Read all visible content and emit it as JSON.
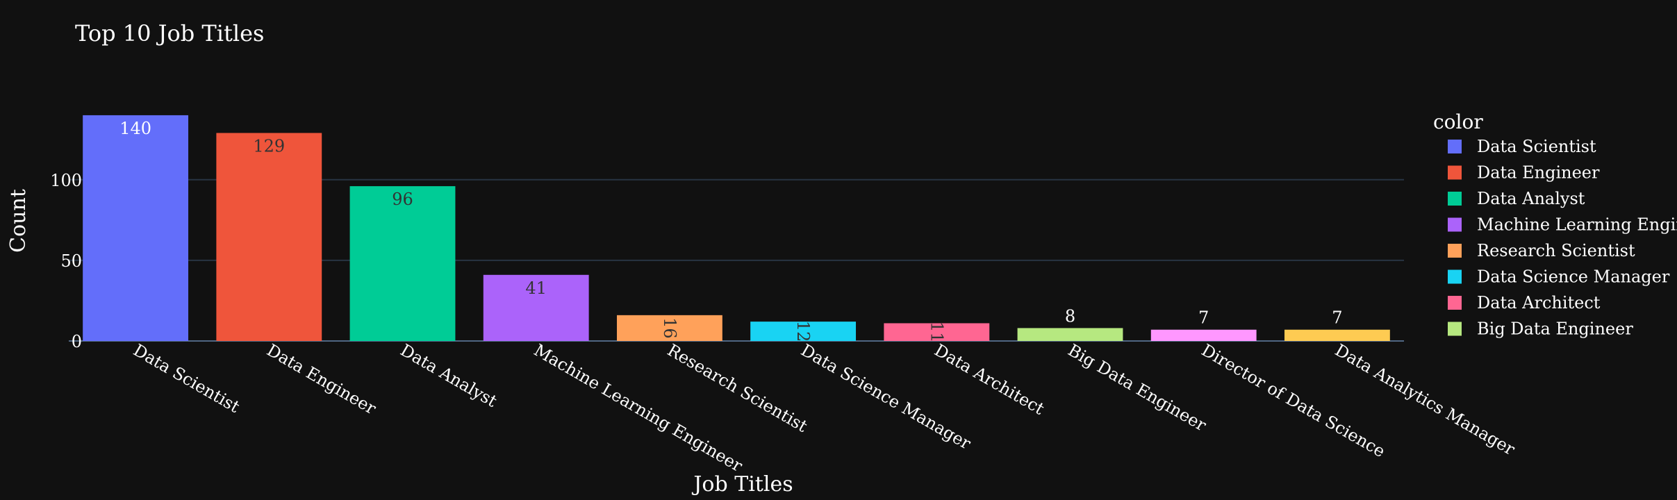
{
  "chart_data": {
    "type": "bar",
    "title": "Top 10 Job Titles",
    "xlabel": "Job Titles",
    "ylabel": "Count",
    "ylim": [
      0,
      146
    ],
    "yticks": [
      0,
      50,
      100
    ],
    "grid": true,
    "legend_title": "color",
    "legend_position": "right",
    "categories": [
      "Data Scientist",
      "Data Engineer",
      "Data Analyst",
      "Machine Learning Engineer",
      "Research Scientist",
      "Data Science Manager",
      "Data Architect",
      "Big Data Engineer",
      "Director of Data Science",
      "Data Analytics Manager"
    ],
    "values": [
      140,
      129,
      96,
      41,
      16,
      12,
      11,
      8,
      7,
      7
    ],
    "colors": [
      "#636efa",
      "#ef553b",
      "#00cc96",
      "#ab63fa",
      "#ffa15a",
      "#19d3f3",
      "#ff6692",
      "#b6e880",
      "#ff97ff",
      "#fecb52"
    ],
    "legend_visible": [
      "Data Scientist",
      "Data Engineer",
      "Data Analyst",
      "Machine Learning Engineer",
      "Research Scientist",
      "Data Science Manager",
      "Data Architect",
      "Big Data Engineer"
    ]
  }
}
